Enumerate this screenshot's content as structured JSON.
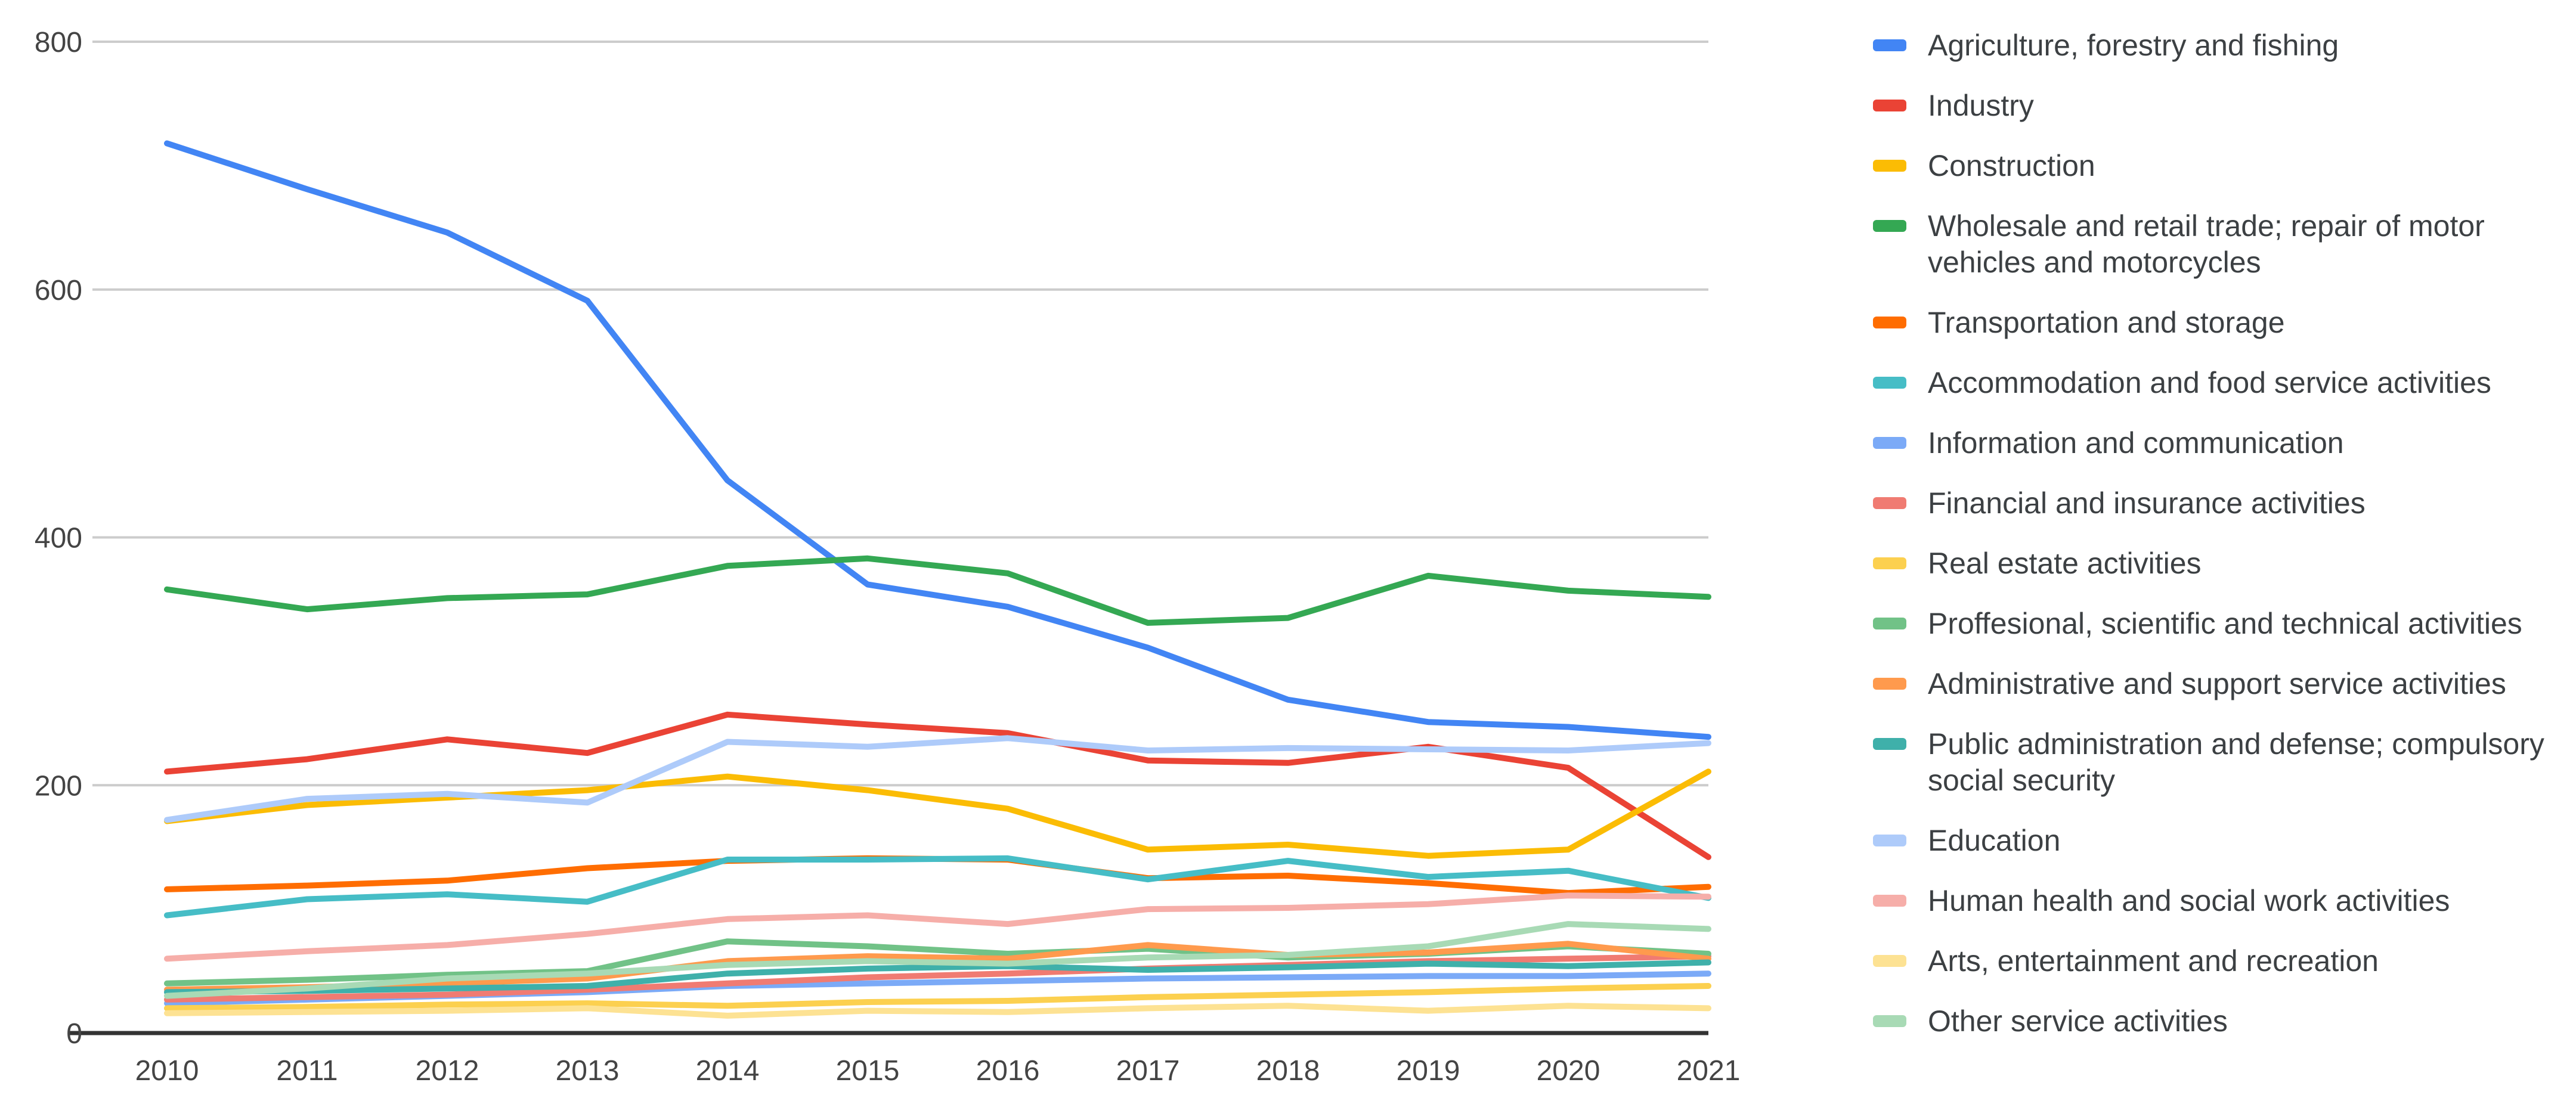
{
  "chart_data": {
    "type": "line",
    "title": "",
    "xlabel": "",
    "ylabel": "",
    "categories": [
      "2010",
      "2011",
      "2012",
      "2013",
      "2014",
      "2015",
      "2016",
      "2017",
      "2018",
      "2019",
      "2020",
      "2021"
    ],
    "y_ticks": [
      0,
      200,
      400,
      600,
      800
    ],
    "ylim": [
      0,
      800
    ],
    "grid": true,
    "legend_position": "right",
    "colors": {
      "grid_color": "#cccccc",
      "axis_line_color": "#333333",
      "tick_label_color": "#444444",
      "legend_text_color": "#3c4043",
      "background": "#ffffff"
    },
    "series": [
      {
        "name": "Agriculture, forestry and fishing",
        "color": "#4285F4",
        "values": [
          718,
          681,
          646,
          591,
          446,
          362,
          344,
          311,
          269,
          251,
          247,
          239
        ]
      },
      {
        "name": "Industry",
        "color": "#EA4335",
        "values": [
          211,
          221,
          237,
          226,
          257,
          249,
          242,
          220,
          218,
          231,
          214,
          142
        ]
      },
      {
        "name": "Construction",
        "color": "#FBBC04",
        "values": [
          171,
          184,
          190,
          196,
          207,
          196,
          181,
          148,
          152,
          143,
          148,
          211
        ]
      },
      {
        "name": "Wholesale and retail trade; repair of motor vehicles and motorcycles",
        "color": "#34A853",
        "values": [
          358,
          342,
          351,
          354,
          377,
          383,
          371,
          331,
          335,
          369,
          357,
          352
        ]
      },
      {
        "name": "Transportation and storage",
        "color": "#FF6D01",
        "values": [
          116,
          119,
          123,
          133,
          139,
          141,
          140,
          125,
          127,
          121,
          113,
          118
        ]
      },
      {
        "name": "Accommodation and food service activities",
        "color": "#46BDC6",
        "values": [
          95,
          108,
          112,
          106,
          140,
          140,
          141,
          124,
          139,
          126,
          131,
          109
        ]
      },
      {
        "name": "Information and communication",
        "color": "#7BAAF7",
        "values": [
          24,
          27,
          30,
          33,
          38,
          40,
          42,
          44,
          45,
          46,
          46,
          48
        ]
      },
      {
        "name": "Financial and insurance activities",
        "color": "#F07B72",
        "values": [
          27,
          29,
          31,
          35,
          40,
          45,
          48,
          52,
          55,
          58,
          60,
          62
        ]
      },
      {
        "name": "Real estate activities",
        "color": "#FCD04F",
        "values": [
          20,
          21,
          23,
          24,
          22,
          25,
          26,
          29,
          31,
          33,
          36,
          38
        ]
      },
      {
        "name": "Proffesional, scientific and technical activities",
        "color": "#71C287",
        "values": [
          40,
          43,
          47,
          50,
          74,
          70,
          64,
          68,
          61,
          64,
          70,
          64
        ]
      },
      {
        "name": "Administrative and support service activities",
        "color": "#FF9A4D",
        "values": [
          35,
          37,
          40,
          44,
          58,
          62,
          60,
          71,
          63,
          65,
          72,
          60
        ]
      },
      {
        "name": "Public administration and defense; compulsory social security",
        "color": "#3FB0AA",
        "values": [
          33,
          34,
          36,
          38,
          48,
          52,
          54,
          51,
          53,
          56,
          54,
          57
        ]
      },
      {
        "name": "Education",
        "color": "#AECBFA",
        "values": [
          172,
          189,
          193,
          186,
          235,
          231,
          238,
          228,
          230,
          229,
          228,
          234
        ]
      },
      {
        "name": "Human health and social work activities",
        "color": "#F6AEA9",
        "values": [
          60,
          66,
          71,
          80,
          92,
          95,
          88,
          100,
          101,
          104,
          111,
          110
        ]
      },
      {
        "name": "Arts, entertainment and recreation",
        "color": "#FDE293",
        "values": [
          16,
          17,
          18,
          20,
          14,
          18,
          17,
          20,
          22,
          18,
          22,
          20
        ]
      },
      {
        "name": "Other service activities",
        "color": "#A8DAB5",
        "values": [
          30,
          36,
          44,
          48,
          55,
          58,
          56,
          61,
          63,
          70,
          88,
          84
        ]
      }
    ]
  }
}
